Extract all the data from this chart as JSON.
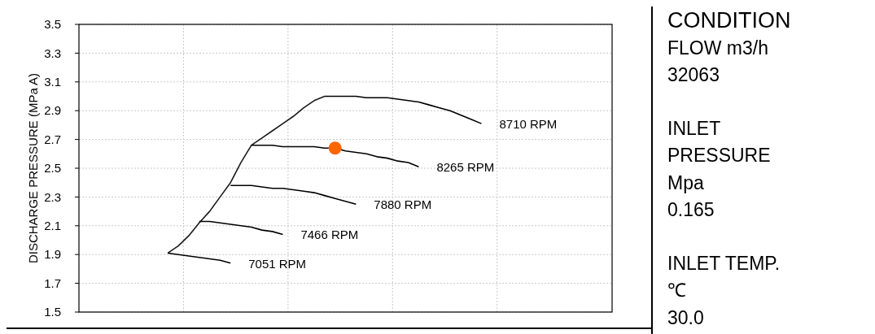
{
  "chart_data": [
    {
      "type": "line",
      "ylabel": "DISCHARGE PRESSURE  (MPa A)",
      "ylim": [
        1.5,
        3.5
      ],
      "yticks": [
        1.5,
        1.7,
        1.9,
        2.1,
        2.3,
        2.5,
        2.7,
        2.9,
        3.1,
        3.3,
        3.5
      ],
      "grid": true,
      "marker": "none",
      "line_style": "solid",
      "categories": [
        null,
        null,
        null,
        null,
        null,
        null,
        null,
        null,
        null,
        null,
        null,
        null,
        null,
        null,
        null,
        null,
        null,
        null,
        null,
        null,
        null,
        null,
        null,
        null,
        null,
        null,
        null,
        null,
        null,
        null,
        null,
        null,
        null,
        null,
        null,
        null,
        null,
        null,
        null,
        null,
        null,
        null,
        null,
        null,
        null,
        null,
        null,
        null,
        null,
        null,
        null
      ],
      "series": [
        {
          "color": "#1a1a1a",
          "values": [
            null,
            null,
            null,
            null,
            null,
            null,
            null,
            null,
            1.91,
            1.96,
            2.03,
            2.12,
            2.2,
            2.3,
            2.4,
            2.54,
            2.66,
            2.71,
            2.76,
            2.81,
            2.86,
            2.92,
            2.97,
            3.0,
            null,
            null,
            null,
            null,
            null,
            null,
            null,
            null,
            null,
            null,
            null,
            null,
            null,
            null,
            null,
            null,
            null,
            null,
            null,
            null,
            null,
            null,
            null,
            null,
            null,
            null,
            null
          ]
        },
        {
          "name": "8710 RPM",
          "color": "#000000",
          "values": [
            null,
            null,
            null,
            null,
            null,
            null,
            null,
            null,
            null,
            null,
            null,
            null,
            null,
            null,
            null,
            null,
            null,
            null,
            null,
            null,
            null,
            null,
            null,
            3.0,
            3.0,
            3.0,
            3.0,
            2.99,
            2.99,
            2.99,
            2.98,
            2.97,
            2.96,
            2.94,
            2.92,
            2.9,
            2.87,
            2.84,
            2.81,
            null,
            null,
            null,
            null,
            null,
            null,
            null,
            null,
            null,
            null,
            null,
            null
          ]
        },
        {
          "name": "8265 RPM",
          "color": "#000000",
          "values": [
            null,
            null,
            null,
            null,
            null,
            null,
            null,
            null,
            null,
            null,
            null,
            null,
            null,
            null,
            null,
            null,
            2.66,
            2.66,
            2.66,
            2.65,
            2.65,
            2.65,
            2.65,
            2.64,
            2.64,
            2.62,
            2.61,
            2.6,
            2.58,
            2.57,
            2.55,
            2.54,
            2.51,
            null,
            null,
            null,
            null,
            null,
            null,
            null,
            null,
            null,
            null,
            null,
            null,
            null,
            null,
            null,
            null,
            null,
            null
          ]
        },
        {
          "name": "7880 RPM",
          "color": "#000000",
          "values": [
            null,
            null,
            null,
            null,
            null,
            null,
            null,
            null,
            null,
            null,
            null,
            null,
            null,
            null,
            2.38,
            2.38,
            2.38,
            2.37,
            2.36,
            2.36,
            2.35,
            2.34,
            2.33,
            2.31,
            2.29,
            2.27,
            2.25,
            null,
            null,
            null,
            null,
            null,
            null,
            null,
            null,
            null,
            null,
            null,
            null,
            null,
            null,
            null,
            null,
            null,
            null,
            null,
            null,
            null,
            null,
            null,
            null
          ]
        },
        {
          "name": "7466 RPM",
          "color": "#000000",
          "values": [
            null,
            null,
            null,
            null,
            null,
            null,
            null,
            null,
            null,
            null,
            null,
            2.13,
            2.13,
            2.12,
            2.11,
            2.1,
            2.09,
            2.07,
            2.06,
            2.04,
            null,
            null,
            null,
            null,
            null,
            null,
            null,
            null,
            null,
            null,
            null,
            null,
            null,
            null,
            null,
            null,
            null,
            null,
            null,
            null,
            null,
            null,
            null,
            null,
            null,
            null,
            null,
            null,
            null,
            null,
            null
          ]
        },
        {
          "name": "7051 RPM",
          "color": "#000000",
          "values": [
            null,
            null,
            null,
            null,
            null,
            null,
            null,
            null,
            1.91,
            1.9,
            1.89,
            1.88,
            1.87,
            1.86,
            1.84,
            null,
            null,
            null,
            null,
            null,
            null,
            null,
            null,
            null,
            null,
            null,
            null,
            null,
            null,
            null,
            null,
            null,
            null,
            null,
            null,
            null,
            null,
            null,
            null,
            null,
            null,
            null,
            null,
            null,
            null,
            null,
            null,
            null,
            null,
            null,
            null
          ]
        },
        {
          "type": "scatter",
          "marker": "circle",
          "color": "#ff6600",
          "values": [
            null,
            null,
            null,
            null,
            null,
            null,
            null,
            null,
            null,
            null,
            null,
            null,
            null,
            null,
            null,
            null,
            null,
            null,
            null,
            null,
            null,
            null,
            null,
            null,
            2.64,
            null,
            null,
            null,
            null,
            null,
            null,
            null,
            null,
            null,
            null,
            null,
            null,
            null,
            null,
            null,
            null,
            null,
            null,
            null,
            null,
            null,
            null,
            null,
            null,
            null,
            null
          ]
        }
      ]
    },
    {
      "type": "other",
      "annotations": [
        "CONDITION",
        "FLOW  m3/h",
        "32063",
        "INLET",
        "PRESSURE",
        "Mpa",
        "0.165",
        "INLET TEMP.",
        "℃",
        "30.0"
      ]
    }
  ]
}
